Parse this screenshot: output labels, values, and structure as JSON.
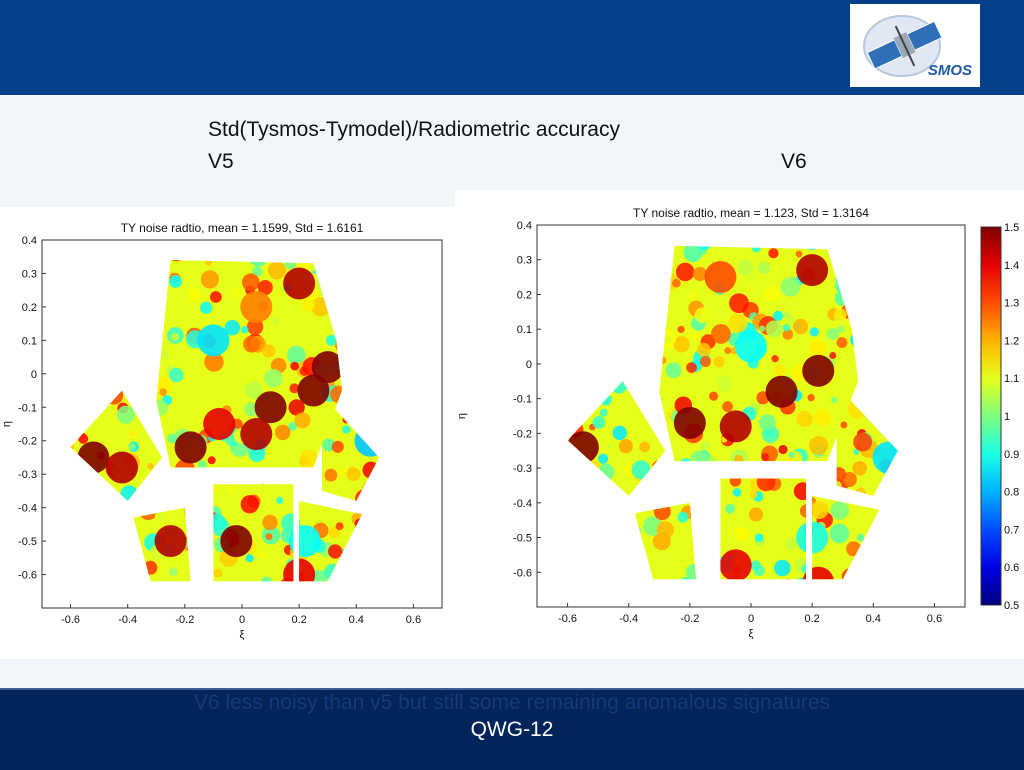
{
  "slide": {
    "heading": "Std(Tysmos-Tymodel)/Radiometric accuracy",
    "left_label": "V5",
    "right_label": "V6",
    "note": "V6 less noisy than v5 but still some remaining anomalous signatures",
    "meeting": "QWG-12",
    "logo_text": "SMOS",
    "colors": {
      "top_bar": "#02418a",
      "bottom_bar": "#01245a",
      "note_text": "#163a7a"
    }
  },
  "chart_data": [
    {
      "type": "heatmap",
      "title": "TY noise radtio, mean = 1.1599, Std = 1.6161",
      "xlabel": "ξ",
      "ylabel": "η",
      "xlim": [
        -0.7,
        0.7
      ],
      "ylim": [
        -0.7,
        0.4
      ],
      "xticks": [
        "-0.6",
        "-0.4",
        "-0.2",
        "0",
        "0.2",
        "0.4",
        "0.6"
      ],
      "yticks": [
        "0.4",
        "0.3",
        "0.2",
        "0.1",
        "0",
        "-0.1",
        "-0.2",
        "-0.3",
        "-0.4",
        "-0.5",
        "-0.6"
      ],
      "colorbar": false,
      "patches": [
        {
          "v": 1.45,
          "x": 0.2,
          "y": 0.27
        },
        {
          "v": 1.5,
          "x": 0.25,
          "y": -0.05
        },
        {
          "v": 1.5,
          "x": 0.3,
          "y": 0.02
        },
        {
          "v": 1.5,
          "x": 0.1,
          "y": -0.1
        },
        {
          "v": 1.45,
          "x": 0.05,
          "y": -0.18
        },
        {
          "v": 1.4,
          "x": -0.08,
          "y": -0.15
        },
        {
          "v": 1.5,
          "x": -0.18,
          "y": -0.22
        },
        {
          "v": 1.5,
          "x": -0.52,
          "y": -0.25
        },
        {
          "v": 1.45,
          "x": -0.42,
          "y": -0.28
        },
        {
          "v": 1.5,
          "x": -0.02,
          "y": -0.5
        },
        {
          "v": 1.45,
          "x": -0.25,
          "y": -0.5
        },
        {
          "v": 1.4,
          "x": 0.2,
          "y": -0.6
        },
        {
          "v": 0.82,
          "x": 0.45,
          "y": -0.2
        },
        {
          "v": 0.85,
          "x": -0.1,
          "y": 0.1
        },
        {
          "v": 0.88,
          "x": 0.22,
          "y": -0.5
        },
        {
          "v": 1.25,
          "x": 0.05,
          "y": 0.2
        }
      ]
    },
    {
      "type": "heatmap",
      "title": "TY noise radtio, mean = 1.123, Std = 1.3164",
      "xlabel": "ξ",
      "ylabel": "η",
      "xlim": [
        -0.7,
        0.7
      ],
      "ylim": [
        -0.7,
        0.4
      ],
      "xticks": [
        "-0.6",
        "-0.4",
        "-0.2",
        "0",
        "0.2",
        "0.4",
        "0.6"
      ],
      "yticks": [
        "0.4",
        "0.3",
        "0.2",
        "0.1",
        "0",
        "-0.1",
        "-0.2",
        "-0.3",
        "-0.4",
        "-0.5",
        "-0.6"
      ],
      "colorbar": true,
      "colorbar_range": [
        0.5,
        1.5
      ],
      "colorbar_ticks": [
        "1.5",
        "1.4",
        "1.3",
        "1.2",
        "1.1",
        "1",
        "0.9",
        "0.8",
        "0.7",
        "0.6",
        "0.5"
      ],
      "patches": [
        {
          "v": 1.5,
          "x": 0.22,
          "y": -0.02
        },
        {
          "v": 1.5,
          "x": 0.1,
          "y": -0.08
        },
        {
          "v": 1.45,
          "x": -0.05,
          "y": -0.18
        },
        {
          "v": 1.5,
          "x": -0.2,
          "y": -0.17
        },
        {
          "v": 1.45,
          "x": 0.2,
          "y": 0.27
        },
        {
          "v": 1.5,
          "x": -0.55,
          "y": -0.24
        },
        {
          "v": 1.4,
          "x": -0.05,
          "y": -0.58
        },
        {
          "v": 1.4,
          "x": 0.22,
          "y": -0.63
        },
        {
          "v": 0.85,
          "x": 0.45,
          "y": -0.27
        },
        {
          "v": 0.88,
          "x": 0.0,
          "y": 0.05
        },
        {
          "v": 1.3,
          "x": -0.1,
          "y": 0.25
        },
        {
          "v": 0.9,
          "x": 0.2,
          "y": -0.5
        }
      ]
    }
  ]
}
